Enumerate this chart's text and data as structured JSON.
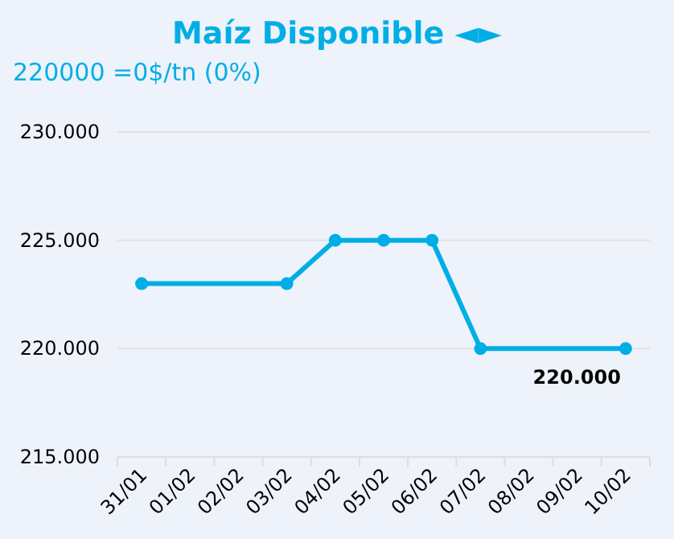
{
  "chart_data": {
    "type": "line",
    "title": "Maíz Disponible ◄►",
    "subtitle": "220000 =0$/tn (0%)",
    "categories": [
      "31/01",
      "01/02",
      "02/02",
      "03/02",
      "04/02",
      "05/02",
      "06/02",
      "07/02",
      "08/02",
      "09/02",
      "10/02"
    ],
    "series": [
      {
        "color": "#00aee6",
        "values": [
          223000,
          null,
          null,
          223000,
          225000,
          225000,
          225000,
          220000,
          null,
          null,
          220000
        ],
        "value_labels": [
          null,
          null,
          null,
          null,
          null,
          null,
          null,
          null,
          null,
          null,
          "220.000"
        ]
      }
    ],
    "ylim": [
      215000,
      230000
    ],
    "yticks": [
      {
        "value": 215000,
        "label": "215.000"
      },
      {
        "value": 220000,
        "label": "220.000"
      },
      {
        "value": 225000,
        "label": "225.000"
      },
      {
        "value": 230000,
        "label": "230.000"
      }
    ],
    "grid": "y",
    "marker": "circle",
    "line_style": "solid"
  }
}
